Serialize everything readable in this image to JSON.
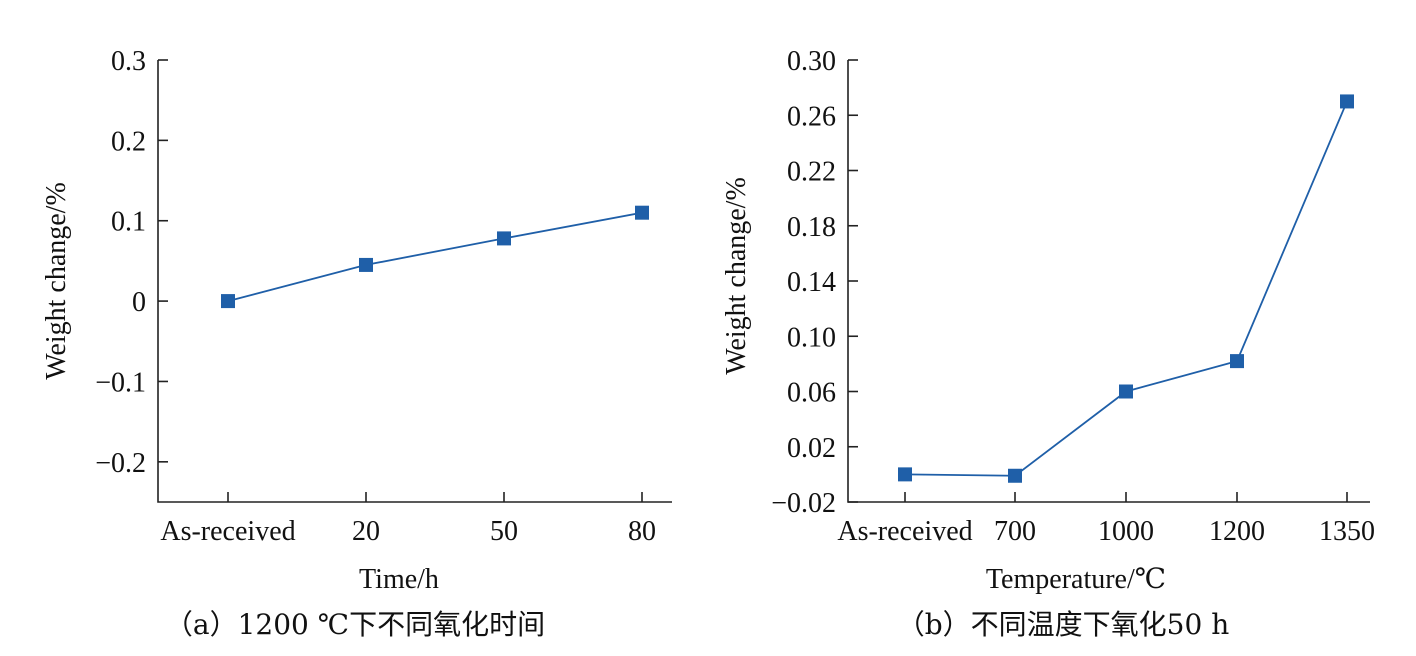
{
  "chart_data": [
    {
      "type": "line",
      "categories": [
        "As-received",
        "20",
        "50",
        "80"
      ],
      "values": [
        0,
        0.045,
        0.078,
        0.11
      ],
      "xlabel": "Time/h",
      "ylabel": "Weight change/%",
      "ylim": [
        -0.25,
        0.3
      ],
      "yticks": [
        0.3,
        0.2,
        0.1,
        0,
        -0.1,
        -0.2
      ],
      "ytick_labels": [
        "0.3",
        "0.2",
        "0.1",
        "0",
        "−0.1",
        "−0.2"
      ],
      "caption": "（a）1200 ℃下不同氧化时间",
      "color": "#1f5fa8",
      "grid": false
    },
    {
      "type": "line",
      "categories": [
        "As-received",
        "700",
        "1000",
        "1200",
        "1350"
      ],
      "values": [
        0.0,
        -0.001,
        0.06,
        0.082,
        0.27
      ],
      "xlabel": "Temperature/℃",
      "ylabel": "Weight change/%",
      "ylim": [
        -0.02,
        0.3
      ],
      "yticks": [
        0.3,
        0.26,
        0.22,
        0.18,
        0.14,
        0.1,
        0.06,
        0.02,
        -0.02
      ],
      "ytick_labels": [
        "0.30",
        "0.26",
        "0.22",
        "0.18",
        "0.14",
        "0.10",
        "0.06",
        "0.02",
        "−0.02"
      ],
      "caption": "（b）不同温度下氧化50 h",
      "color": "#1f5fa8",
      "grid": false
    }
  ]
}
